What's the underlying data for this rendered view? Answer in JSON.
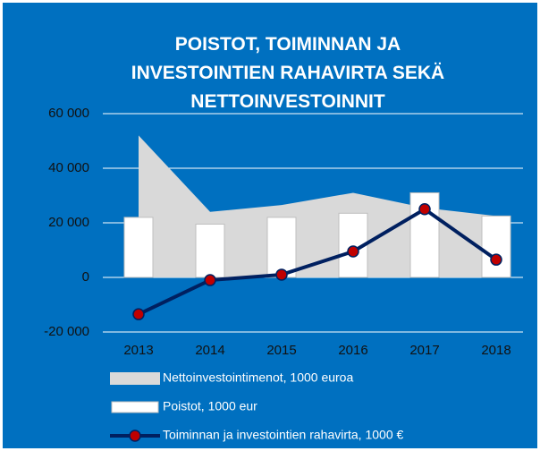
{
  "chart_data": {
    "type": "combo",
    "title": "POISTOT, TOIMINNAN JA INVESTOINTIEN RAHAVIRTA SEKÄ NETTOINVESTOINNIT",
    "categories": [
      "2013",
      "2014",
      "2015",
      "2016",
      "2017",
      "2018"
    ],
    "series": [
      {
        "name": "Nettoinvestointimenot, 1000 euroa",
        "kind": "area",
        "color": "#d9d9d9",
        "values": [
          52000,
          24000,
          26500,
          31000,
          25500,
          22500
        ]
      },
      {
        "name": "Poistot, 1000 eur",
        "kind": "bar",
        "color": "#ffffff",
        "values": [
          22000,
          19500,
          22000,
          23500,
          31000,
          22500
        ]
      },
      {
        "name": "Toiminnan ja investointien rahavirta, 1000 €",
        "kind": "line",
        "color": "#002060",
        "marker_color": "#c00000",
        "values": [
          -13500,
          -1000,
          1000,
          9500,
          25000,
          6500
        ]
      }
    ],
    "ylim": [
      -20000,
      60000
    ],
    "yticks": [
      {
        "value": -20000,
        "label": "-20 000"
      },
      0,
      {
        "value": 20000,
        "label": "20 000"
      },
      {
        "value": 40000,
        "label": "40 000"
      },
      {
        "value": 60000,
        "label": "60 000"
      }
    ],
    "grid": true,
    "background": "#0070c0"
  }
}
